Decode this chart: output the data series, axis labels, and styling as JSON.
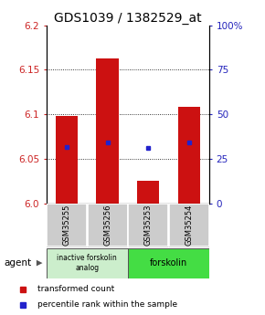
{
  "title": "GDS1039 / 1382529_at",
  "samples": [
    "GSM35255",
    "GSM35256",
    "GSM35253",
    "GSM35254"
  ],
  "bar_tops": [
    6.098,
    6.163,
    6.025,
    6.108
  ],
  "bar_base": 6.0,
  "blue_values": [
    6.063,
    6.068,
    6.062,
    6.068
  ],
  "ylim_left": [
    6.0,
    6.2
  ],
  "ylim_right": [
    0,
    100
  ],
  "yticks_left": [
    6.0,
    6.05,
    6.1,
    6.15,
    6.2
  ],
  "yticks_right": [
    0,
    25,
    50,
    75,
    100
  ],
  "ytick_labels_right": [
    "0",
    "25",
    "50",
    "75",
    "100%"
  ],
  "bar_color": "#cc1111",
  "blue_color": "#2222cc",
  "grid_lines": [
    6.05,
    6.1,
    6.15
  ],
  "group0_label": "inactive forskolin\nanalog",
  "group0_color": "#cceecc",
  "group1_label": "forskolin",
  "group1_color": "#44dd44",
  "sample_box_color": "#cccccc",
  "agent_label": "agent",
  "legend_red_label": "transformed count",
  "legend_blue_label": "percentile rank within the sample",
  "title_fontsize": 10,
  "tick_fontsize": 7.5,
  "bar_width": 0.55
}
